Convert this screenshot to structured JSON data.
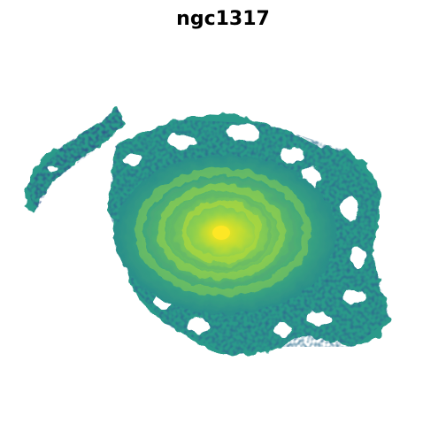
{
  "figure": {
    "title": "ngc1317",
    "colormap": "viridis",
    "colors": {
      "background": "#ffffff",
      "outer_disk": "#2a9a8a",
      "outer_disk_dark": "#257a86",
      "mid_disk": "#4aae74",
      "inner_disk": "#78c85a",
      "bright_ring": "#a4d644",
      "core": "#f0e21e",
      "core_peak": "#fde725",
      "noise_dark": "#2d6d8e",
      "noise_deep": "#31548c"
    }
  }
}
